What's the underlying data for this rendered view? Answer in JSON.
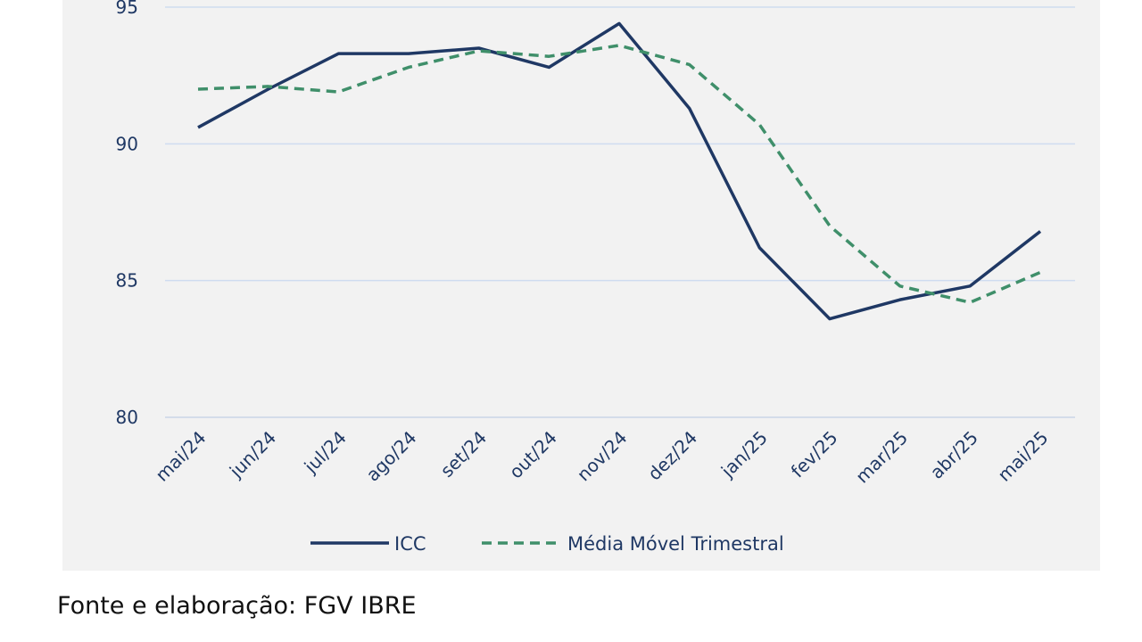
{
  "chart_data": {
    "type": "line",
    "title": "",
    "xlabel": "",
    "ylabel": "",
    "ylim": [
      80,
      95
    ],
    "yticks": [
      "80",
      "85",
      "90",
      "95"
    ],
    "grid": true,
    "legend_position": "bottom",
    "categories": [
      "mai/24",
      "jun/24",
      "jul/24",
      "ago/24",
      "set/24",
      "out/24",
      "nov/24",
      "dez/24",
      "jan/25",
      "fev/25",
      "mar/25",
      "abr/25",
      "mai/25"
    ],
    "series": [
      {
        "name": "ICC",
        "color": "#1f3864",
        "style": "solid",
        "values": [
          90.6,
          92.0,
          93.3,
          93.3,
          93.5,
          92.8,
          94.4,
          91.3,
          86.2,
          83.6,
          84.3,
          84.8,
          86.8
        ]
      },
      {
        "name": "Média Móvel Trimestral",
        "color": "#3f8f6a",
        "style": "dashed",
        "values": [
          92.0,
          92.1,
          91.9,
          92.8,
          93.4,
          93.2,
          93.6,
          92.9,
          90.7,
          87.0,
          84.8,
          84.2,
          85.3
        ]
      }
    ]
  },
  "source": "Fonte e elaboração: FGV IBRE"
}
